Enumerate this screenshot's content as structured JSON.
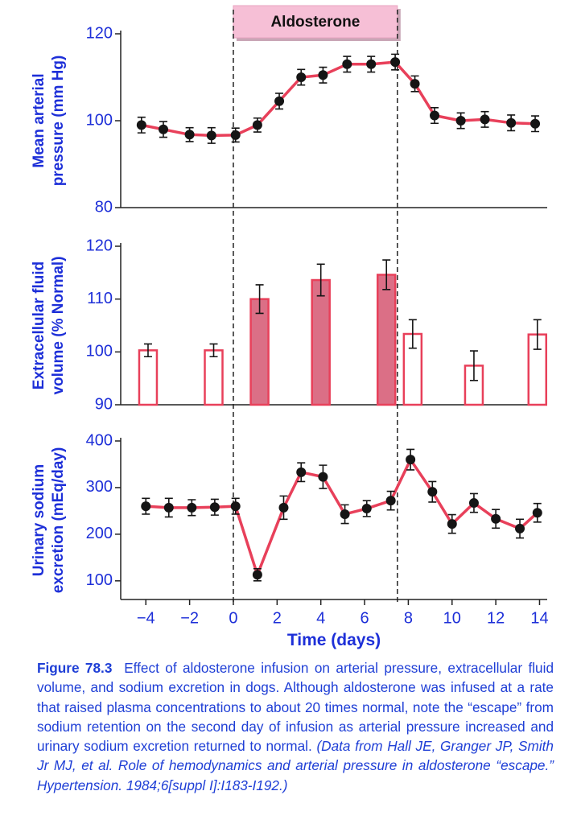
{
  "chart_data": [
    {
      "type": "line",
      "ylabel": [
        "Mean arterial",
        "pressure (mm Hg)"
      ],
      "x": [
        -4.2,
        -3.2,
        -2,
        -1,
        0.1,
        1.1,
        2.1,
        3.1,
        4.1,
        5.2,
        6.3,
        7.4,
        8.3,
        9.2,
        10.4,
        11.5,
        12.7,
        13.8
      ],
      "values": [
        99,
        98,
        96.8,
        96.6,
        96.7,
        99,
        104.5,
        110,
        110.5,
        113,
        113,
        113.5,
        108.5,
        101.2,
        100,
        100.3,
        99.5,
        99.3
      ],
      "errors": [
        1.8,
        1.8,
        1.6,
        1.8,
        1.6,
        1.6,
        1.8,
        1.8,
        1.8,
        1.8,
        1.8,
        1.8,
        1.8,
        1.8,
        1.8,
        1.8,
        1.8,
        1.8
      ],
      "color": "#e8405a",
      "marker_color": "#151515",
      "xlim": [
        -5.15,
        14.35
      ],
      "ylim": [
        80,
        120
      ],
      "yticks": [
        80,
        100,
        120
      ]
    },
    {
      "type": "bar",
      "ylabel": [
        "Extracellular fluid",
        "volume (% Normal)"
      ],
      "x": [
        -3.9,
        -0.9,
        1.2,
        4,
        7,
        8.2,
        11,
        13.9
      ],
      "values": [
        100.3,
        100.3,
        110,
        113.6,
        114.6,
        103.4,
        97.4,
        103.3
      ],
      "errors": [
        1.2,
        1.2,
        2.7,
        3,
        2.8,
        2.7,
        2.8,
        2.8
      ],
      "fills": [
        "#ffffff",
        "#ffffff",
        "#db6f86",
        "#db6f86",
        "#db6f86",
        "#ffffff",
        "#ffffff",
        "#ffffff"
      ],
      "color": "#e8405a",
      "xlim": [
        -5.15,
        14.35
      ],
      "ylim": [
        90,
        120
      ],
      "yticks": [
        90,
        100,
        110,
        120
      ]
    },
    {
      "type": "line",
      "ylabel": [
        "Urinary sodium",
        "excretion (mEq/day)"
      ],
      "xlabel": "Time (days)",
      "x": [
        -4,
        -2.95,
        -1.9,
        -0.85,
        0.1,
        1.1,
        2.3,
        3.1,
        4.1,
        5.1,
        6.1,
        7.2,
        8.1,
        9.1,
        10,
        11,
        12,
        13.1,
        13.9
      ],
      "values": [
        260,
        257,
        257,
        258,
        260,
        113,
        257,
        333,
        323,
        243,
        255,
        272,
        360,
        291,
        222,
        267,
        233,
        212,
        246
      ],
      "errors": [
        17,
        20,
        17,
        17,
        17,
        13,
        25,
        20,
        25,
        20,
        17,
        20,
        22,
        22,
        20,
        20,
        20,
        20,
        20
      ],
      "color": "#e8405a",
      "marker_color": "#151515",
      "xlim": [
        -5.15,
        14.35
      ],
      "ylim": [
        60,
        400
      ],
      "yticks": [
        100,
        200,
        300,
        400
      ],
      "xticks": [
        {
          "value": -4,
          "label": "−4"
        },
        {
          "value": -2,
          "label": "−2"
        },
        0,
        2,
        4,
        6,
        8,
        10,
        12,
        14
      ]
    }
  ],
  "annotation": {
    "label": "Aldosterone",
    "start": 0,
    "end": 7.5
  },
  "caption": {
    "label": "Figure 78.3",
    "text": "Effect of aldosterone infusion on arterial pressure, extracellular fluid volume, and sodium excretion in dogs. Although aldosterone was infused at a rate that raised plasma concentrations to about 20 times normal, note the “escape” from sodium retention on the second day of infusion as arterial pressure increased and urinary sodium excretion returned to normal.",
    "citation": "(Data from Hall JE, Granger JP, Smith Jr MJ, et al. Role of hemodynamics and arterial pressure in aldosterone “escape.” Hypertension. 1984;6[suppl I]:I183-I192.)"
  }
}
